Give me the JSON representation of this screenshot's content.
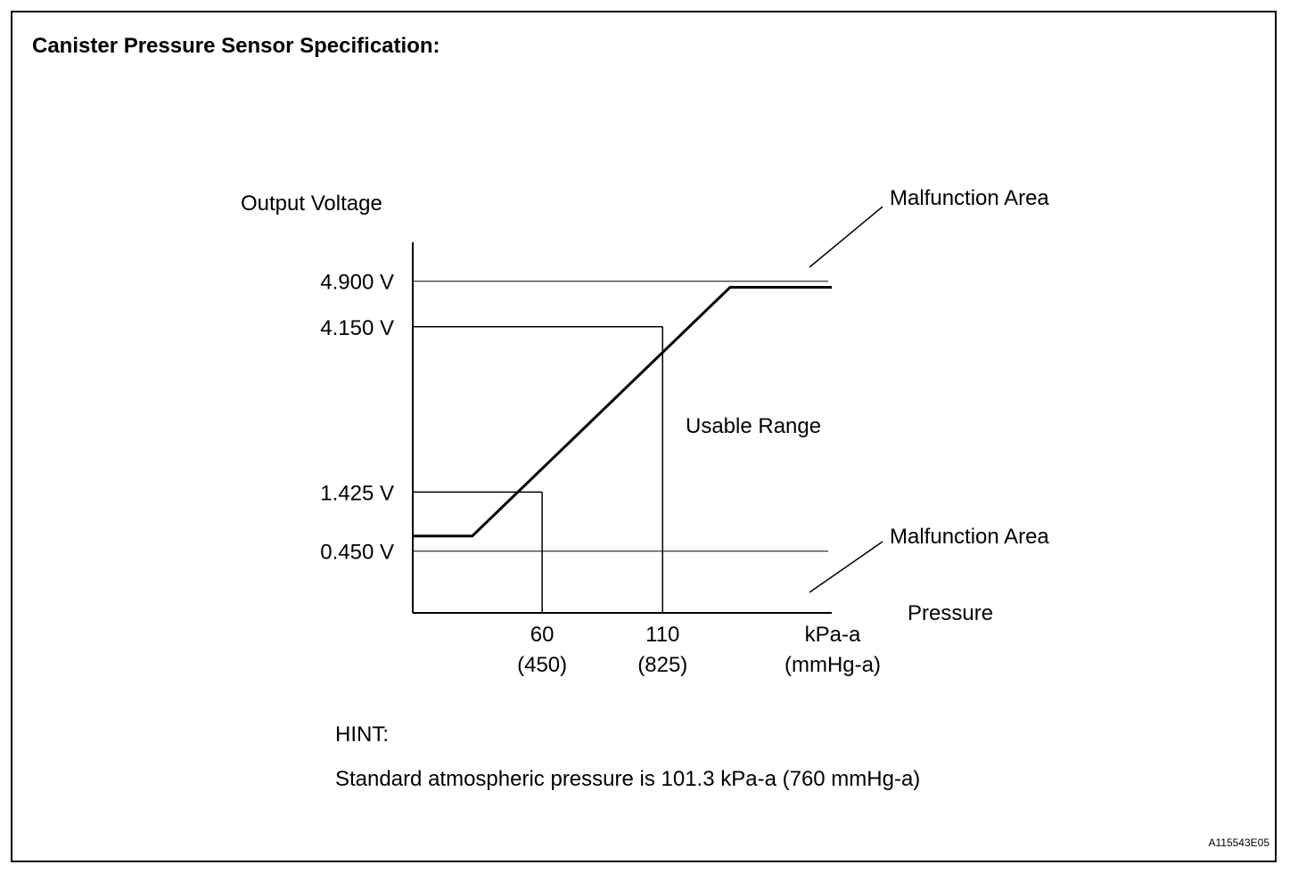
{
  "title": "Canister Pressure Sensor Specification:",
  "hint": {
    "label": "HINT:",
    "text": "Standard atmospheric pressure is 101.3 kPa-a (760 mmHg-a)"
  },
  "figure_id": "A115543E05",
  "chart_data": {
    "type": "line",
    "title": "",
    "ylabel": "Output Voltage",
    "xlabel": "Pressure",
    "x_unit": [
      "kPa-a",
      "(mmHg-a)"
    ],
    "y_ticks": [
      {
        "value": 0.45,
        "label": "0.450 V"
      },
      {
        "value": 1.425,
        "label": "1.425 V"
      },
      {
        "value": 4.15,
        "label": "4.150 V"
      },
      {
        "value": 4.9,
        "label": "4.900 V"
      }
    ],
    "x_ticks": [
      {
        "value": 60,
        "label": "60",
        "sub": "(450)"
      },
      {
        "value": 110,
        "label": "110",
        "sub": "(825)"
      }
    ],
    "xlim": [
      6.3,
      180.2
    ],
    "ylim": [
      -0.567,
      5.542
    ],
    "series": [
      {
        "x": [
          6.3,
          31,
          138,
          180.2
        ],
        "y": [
          0.7,
          0.7,
          4.8,
          4.8
        ]
      }
    ],
    "reference_lines": [
      {
        "axis": "y",
        "value": 4.9
      },
      {
        "axis": "y",
        "value": 0.45
      }
    ],
    "drop_lines": [
      {
        "x": 60,
        "y": 1.425
      },
      {
        "x": 110,
        "y": 4.15
      }
    ],
    "annotations": [
      {
        "text": "Malfunction Area",
        "near": "upper reference line"
      },
      {
        "text": "Malfunction Area",
        "near": "lower reference line"
      },
      {
        "text": "Usable Range",
        "near": "center"
      }
    ]
  }
}
